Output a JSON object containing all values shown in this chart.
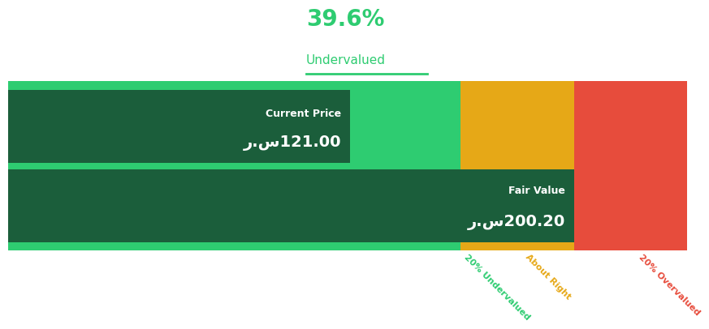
{
  "title_pct": "39.6%",
  "title_label": "Undervalued",
  "title_color": "#2ecc71",
  "current_price": "121.00",
  "fair_value": "200.20",
  "currency_symbol": "ر.س",
  "bg_color": "#ffffff",
  "current_price_val": 121.0,
  "fair_value_val": 200.2,
  "color_green_light": "#2ecc71",
  "color_green_dark": "#1b5e3b",
  "color_orange": "#e6a817",
  "color_red": "#e74c3c",
  "label_20pct_under": "20% Undervalued",
  "label_about_right": "About Right",
  "label_20pct_over": "20% Overvalued",
  "label_color_green": "#2ecc71",
  "label_color_orange": "#e6a817",
  "label_color_red": "#e74c3c"
}
